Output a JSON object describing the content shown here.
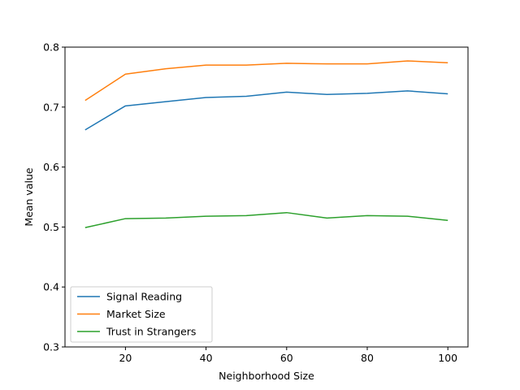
{
  "chart_data": {
    "type": "line",
    "title": "",
    "xlabel": "Neighborhood Size",
    "ylabel": "Mean value",
    "x": [
      10,
      20,
      30,
      40,
      50,
      60,
      70,
      80,
      90,
      100
    ],
    "xlim": [
      5,
      105
    ],
    "ylim": [
      0.3,
      0.8
    ],
    "xticks": [
      20,
      40,
      60,
      80,
      100
    ],
    "yticks": [
      0.3,
      0.4,
      0.5,
      0.6,
      0.7,
      0.8
    ],
    "xtick_labels": [
      "20",
      "40",
      "60",
      "80",
      "100"
    ],
    "ytick_labels": [
      "0.3",
      "0.4",
      "0.5",
      "0.6",
      "0.7",
      "0.8"
    ],
    "grid": false,
    "legend_position": "lower-left",
    "series": [
      {
        "name": "Signal Reading",
        "color": "#1f77b4",
        "values": [
          0.662,
          0.702,
          0.709,
          0.716,
          0.718,
          0.725,
          0.721,
          0.723,
          0.727,
          0.722
        ]
      },
      {
        "name": "Market Size",
        "color": "#ff7f0e",
        "values": [
          0.711,
          0.755,
          0.764,
          0.77,
          0.77,
          0.773,
          0.772,
          0.772,
          0.777,
          0.774
        ]
      },
      {
        "name": "Trust in Strangers",
        "color": "#2ca02c",
        "values": [
          0.499,
          0.514,
          0.515,
          0.518,
          0.519,
          0.524,
          0.515,
          0.519,
          0.518,
          0.511
        ]
      }
    ]
  }
}
